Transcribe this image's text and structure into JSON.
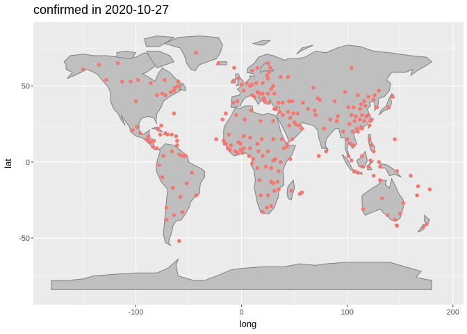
{
  "chart_data": {
    "type": "scatter",
    "title": "confirmed in 2020-10-27",
    "xlabel": "long",
    "ylabel": "lat",
    "xlim": [
      -197,
      210
    ],
    "ylim": [
      -94,
      92
    ],
    "xticks": [
      -100,
      0,
      100,
      200
    ],
    "yticks": [
      -50,
      0,
      50
    ],
    "xtick_labels": [
      "-100",
      "0",
      "100",
      "200"
    ],
    "ytick_labels": [
      "-50",
      "0",
      "50"
    ],
    "panel_color": "#ebebeb",
    "grid": true,
    "land_fill": "#bfbfbf",
    "land_stroke": "#7f7f7f",
    "point_color": "#f8766d",
    "points": [
      [
        -135,
        64
      ],
      [
        -117,
        65
      ],
      [
        -150,
        61
      ],
      [
        -128,
        54
      ],
      [
        -113,
        53
      ],
      [
        -105,
        53
      ],
      [
        -98,
        54
      ],
      [
        -86,
        52
      ],
      [
        -73,
        54
      ],
      [
        -60,
        53
      ],
      [
        -100,
        40
      ],
      [
        -75,
        45
      ],
      [
        -72,
        44
      ],
      [
        -67,
        46
      ],
      [
        -64,
        47
      ],
      [
        -80,
        44
      ],
      [
        -63,
        49
      ],
      [
        -60,
        50
      ],
      [
        -43,
        72
      ],
      [
        -99,
        23
      ],
      [
        -103,
        21
      ],
      [
        -96,
        19
      ],
      [
        -90,
        15
      ],
      [
        -88,
        14
      ],
      [
        -86,
        13
      ],
      [
        -84,
        10
      ],
      [
        -80,
        9
      ],
      [
        -77,
        18
      ],
      [
        -72,
        19
      ],
      [
        -70,
        18
      ],
      [
        -66,
        18
      ],
      [
        -61,
        14
      ],
      [
        -61,
        11
      ],
      [
        -62,
        17
      ],
      [
        -79,
        22
      ],
      [
        -76,
        24
      ],
      [
        -64,
        32
      ],
      [
        -88,
        17
      ],
      [
        -83,
        14
      ],
      [
        -74,
        4
      ],
      [
        -66,
        7
      ],
      [
        -59,
        5
      ],
      [
        -56,
        4
      ],
      [
        -53,
        4
      ],
      [
        -78,
        -2
      ],
      [
        -75,
        -10
      ],
      [
        -65,
        -17
      ],
      [
        -58,
        -23
      ],
      [
        -64,
        -35
      ],
      [
        -71,
        -30
      ],
      [
        -71,
        -38
      ],
      [
        -56,
        -33
      ],
      [
        -59,
        -52
      ],
      [
        -52,
        -14
      ],
      [
        -47,
        -7
      ],
      [
        -43,
        -22
      ],
      [
        -22,
        65
      ],
      [
        -8,
        53
      ],
      [
        -3,
        55
      ],
      [
        0,
        51
      ],
      [
        2,
        47
      ],
      [
        -4,
        40
      ],
      [
        -8,
        39
      ],
      [
        5,
        52
      ],
      [
        8,
        50
      ],
      [
        10,
        51
      ],
      [
        14,
        52
      ],
      [
        20,
        52
      ],
      [
        25,
        55
      ],
      [
        24,
        57
      ],
      [
        26,
        59
      ],
      [
        15,
        62
      ],
      [
        10,
        60
      ],
      [
        27,
        62
      ],
      [
        25,
        65
      ],
      [
        28,
        48
      ],
      [
        30,
        50
      ],
      [
        37,
        56
      ],
      [
        44,
        56
      ],
      [
        31,
        45
      ],
      [
        25,
        45
      ],
      [
        20,
        45
      ],
      [
        17,
        45
      ],
      [
        15,
        46
      ],
      [
        12,
        43
      ],
      [
        10,
        44
      ],
      [
        21,
        42
      ],
      [
        22,
        40
      ],
      [
        26,
        39
      ],
      [
        20,
        41
      ],
      [
        35,
        39
      ],
      [
        39,
        39
      ],
      [
        45,
        40
      ],
      [
        48,
        40
      ],
      [
        36,
        33
      ],
      [
        39,
        31
      ],
      [
        44,
        33
      ],
      [
        31,
        35
      ],
      [
        33,
        35
      ],
      [
        46,
        29
      ],
      [
        51,
        25
      ],
      [
        50,
        26
      ],
      [
        54,
        24
      ],
      [
        45,
        24
      ],
      [
        57,
        22
      ],
      [
        48,
        15
      ],
      [
        43,
        12
      ],
      [
        49,
        32
      ],
      [
        53,
        32
      ],
      [
        58,
        39
      ],
      [
        63,
        35
      ],
      [
        69,
        34
      ],
      [
        70,
        31
      ],
      [
        74,
        41
      ],
      [
        68,
        49
      ],
      [
        72,
        42
      ],
      [
        84,
        28
      ],
      [
        90,
        27
      ],
      [
        78,
        22
      ],
      [
        80,
        7
      ],
      [
        73,
        4
      ],
      [
        -7,
        62
      ],
      [
        -18,
        28
      ],
      [
        -15,
        32
      ],
      [
        -5,
        31
      ],
      [
        3,
        28
      ],
      [
        9,
        34
      ],
      [
        18,
        27
      ],
      [
        30,
        27
      ],
      [
        30,
        15
      ],
      [
        38,
        15
      ],
      [
        40,
        9
      ],
      [
        43,
        10
      ],
      [
        46,
        2
      ],
      [
        32,
        2
      ],
      [
        30,
        1
      ],
      [
        28,
        -4
      ],
      [
        37,
        0
      ],
      [
        35,
        -6
      ],
      [
        30,
        -14
      ],
      [
        28,
        -13
      ],
      [
        34,
        -13
      ],
      [
        35,
        -18
      ],
      [
        25,
        -22
      ],
      [
        18,
        -22
      ],
      [
        17,
        -12
      ],
      [
        31,
        -19
      ],
      [
        28,
        -29
      ],
      [
        24,
        -30
      ],
      [
        20,
        -33
      ],
      [
        47,
        -19
      ],
      [
        55,
        -21
      ],
      [
        57,
        -20
      ],
      [
        23,
        -3
      ],
      [
        16,
        7
      ],
      [
        11,
        2
      ],
      [
        10,
        -1
      ],
      [
        15,
        -4
      ],
      [
        8,
        9
      ],
      [
        2,
        9
      ],
      [
        -1,
        8
      ],
      [
        -6,
        7
      ],
      [
        -11,
        8
      ],
      [
        -10,
        11
      ],
      [
        -17,
        14
      ],
      [
        -15,
        12
      ],
      [
        -3,
        13
      ],
      [
        8,
        16
      ],
      [
        -12,
        18
      ],
      [
        2,
        17
      ],
      [
        -1,
        12
      ],
      [
        19,
        15
      ],
      [
        25,
        7
      ],
      [
        -4,
        6
      ],
      [
        7,
        4
      ],
      [
        1,
        6
      ],
      [
        20,
        4
      ],
      [
        15,
        12
      ],
      [
        -24,
        15
      ],
      [
        -13,
        9
      ],
      [
        -16,
        12
      ],
      [
        104,
        62
      ],
      [
        98,
        46
      ],
      [
        110,
        44
      ],
      [
        120,
        43
      ],
      [
        126,
        44
      ],
      [
        130,
        47
      ],
      [
        125,
        41
      ],
      [
        116,
        40
      ],
      [
        117,
        37
      ],
      [
        113,
        38
      ],
      [
        112,
        35
      ],
      [
        106,
        36
      ],
      [
        101,
        36
      ],
      [
        104,
        31
      ],
      [
        108,
        30
      ],
      [
        112,
        28
      ],
      [
        114,
        31
      ],
      [
        118,
        30
      ],
      [
        120,
        31
      ],
      [
        122,
        27
      ],
      [
        116,
        27
      ],
      [
        113,
        23
      ],
      [
        109,
        22
      ],
      [
        102,
        25
      ],
      [
        107,
        27
      ],
      [
        110,
        20
      ],
      [
        114,
        22
      ],
      [
        121,
        24
      ],
      [
        123,
        28
      ],
      [
        128,
        36
      ],
      [
        139,
        36
      ],
      [
        143,
        43
      ],
      [
        91,
        30
      ],
      [
        88,
        40
      ],
      [
        100,
        15
      ],
      [
        103,
        12
      ],
      [
        105,
        20
      ],
      [
        106,
        11
      ],
      [
        96,
        20
      ],
      [
        101,
        4
      ],
      [
        104,
        1
      ],
      [
        114,
        4
      ],
      [
        121,
        15
      ],
      [
        123,
        11
      ],
      [
        125,
        7
      ],
      [
        110,
        -7
      ],
      [
        114,
        -3
      ],
      [
        107,
        -6
      ],
      [
        120,
        -3
      ],
      [
        122,
        1
      ],
      [
        130,
        0
      ],
      [
        131,
        -3
      ],
      [
        125,
        -9
      ],
      [
        145,
        15
      ],
      [
        147,
        -6
      ],
      [
        160,
        -9
      ],
      [
        167,
        -16
      ],
      [
        178,
        -18
      ],
      [
        166,
        -22
      ],
      [
        150,
        -34
      ],
      [
        145,
        -38
      ],
      [
        147,
        -42
      ],
      [
        153,
        -27
      ],
      [
        131,
        -12
      ],
      [
        133,
        -24
      ],
      [
        115,
        -31
      ],
      [
        138,
        -35
      ],
      [
        175,
        -41
      ],
      [
        172,
        -43
      ]
    ]
  }
}
